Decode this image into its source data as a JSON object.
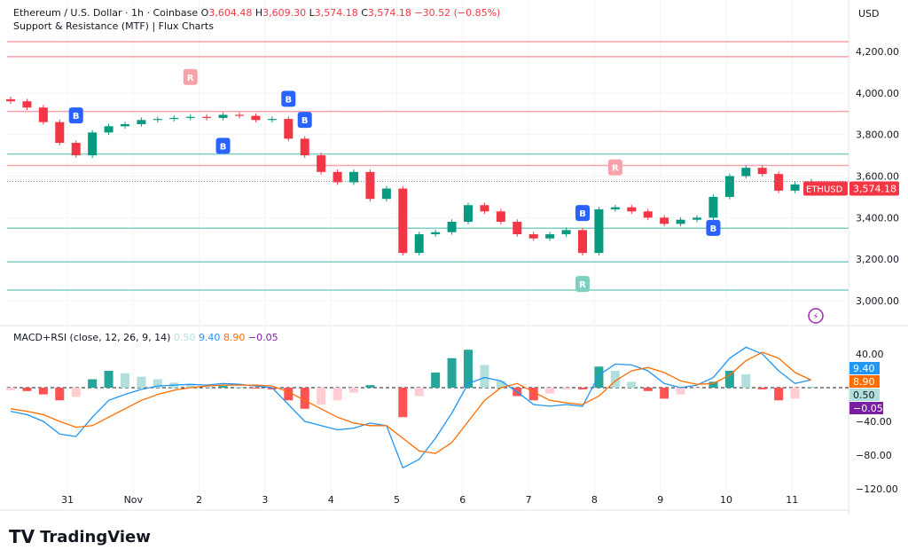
{
  "header": {
    "symbol": "Ethereum / U.S. Dollar · 1h · Coinbase",
    "o_label": "O",
    "open": "3,604.48",
    "h_label": "H",
    "high": "3,609.30",
    "l_label": "L",
    "low": "3,574.18",
    "c_label": "C",
    "close": "3,574.18",
    "change": "−30.52 (−0.85%)",
    "indicator": "Support & Resistance (MTF) | Flux Charts"
  },
  "currency": "USD",
  "price_tag": {
    "symbol": "ETHUSD",
    "value": "3,574.18"
  },
  "macd_header": {
    "label": "MACD+RSI (close, 12, 26, 9, 14)",
    "hist": "0.50",
    "macd": "9.40",
    "signal": "8.90",
    "rsi": "−0.05"
  },
  "macd_tags": [
    "9.40",
    "8.90",
    "0.50",
    "−0.05"
  ],
  "logo": "TradingView",
  "colors": {
    "up": "#089981",
    "down": "#f23645",
    "resistance": "#f7a1a8",
    "support": "#7fcfc0",
    "macd": "#2196f3",
    "signal": "#ff6d00",
    "tag_hist": "#b2dfdb",
    "tag_rsi": "#7b1fa2"
  },
  "chart_data": {
    "type": "candlestick",
    "interval": "1h (sampled every 6h)",
    "x_tick_labels": [
      "31",
      "Nov",
      "2",
      "3",
      "4",
      "5",
      "6",
      "7",
      "8",
      "9",
      "10",
      "11"
    ],
    "y_tick_labels": [
      "4,200.00",
      "4,000.00",
      "3,800.00",
      "3,600.00",
      "3,400.00",
      "3,200.00",
      "3,000.00"
    ],
    "ylim": [
      2950,
      4290
    ],
    "closes": [
      3960,
      3930,
      3860,
      3760,
      3700,
      3810,
      3840,
      3850,
      3870,
      3875,
      3880,
      3885,
      3880,
      3895,
      3890,
      3870,
      3875,
      3780,
      3700,
      3620,
      3570,
      3620,
      3490,
      3540,
      3230,
      3320,
      3330,
      3380,
      3460,
      3430,
      3380,
      3320,
      3300,
      3320,
      3340,
      3230,
      3440,
      3450,
      3430,
      3400,
      3370,
      3390,
      3400,
      3500,
      3600,
      3640,
      3610,
      3530,
      3560,
      3574.18
    ],
    "resistance_levels": [
      4247,
      4175,
      3911,
      3651
    ],
    "support_levels": [
      3706,
      3349,
      3187,
      3051
    ],
    "markers": [
      {
        "i": 4,
        "text": "B",
        "type": "buy",
        "pos": "above"
      },
      {
        "i": 13,
        "text": "B",
        "type": "buy",
        "pos": "below"
      },
      {
        "i": 11,
        "text": "R",
        "type": "res",
        "pos": "above"
      },
      {
        "i": 17,
        "text": "B",
        "type": "buy",
        "pos": "above"
      },
      {
        "i": 18,
        "text": "B",
        "type": "buy",
        "pos": "above2"
      },
      {
        "i": 35,
        "text": "B",
        "type": "buy",
        "pos": "above"
      },
      {
        "i": 35,
        "text": "R",
        "type": "sup",
        "pos": "below"
      },
      {
        "i": 37,
        "text": "R",
        "type": "res",
        "pos": "above"
      },
      {
        "i": 43,
        "text": "B",
        "type": "buy",
        "pos": "below"
      }
    ],
    "macd_ylim": [
      -125,
      60
    ],
    "macd_y_tick_labels": [
      "40.00",
      "−40.00",
      "−80.00",
      "−120.00"
    ],
    "macd": [
      -28,
      -32,
      -40,
      -55,
      -58,
      -35,
      -15,
      -8,
      -2,
      2,
      3,
      4,
      3,
      5,
      4,
      2,
      0,
      -20,
      -40,
      -45,
      -50,
      -48,
      -42,
      -45,
      -95,
      -85,
      -60,
      -30,
      5,
      12,
      8,
      -5,
      -20,
      -22,
      -20,
      -22,
      15,
      28,
      27,
      20,
      5,
      0,
      3,
      12,
      35,
      48,
      40,
      20,
      5,
      9.4
    ],
    "signal": [
      -25,
      -28,
      -32,
      -40,
      -47,
      -45,
      -35,
      -25,
      -15,
      -8,
      -3,
      0,
      2,
      3,
      3,
      3,
      2,
      -5,
      -15,
      -25,
      -35,
      -42,
      -45,
      -45,
      -60,
      -75,
      -78,
      -65,
      -40,
      -15,
      0,
      5,
      -5,
      -15,
      -18,
      -20,
      -10,
      8,
      20,
      24,
      18,
      8,
      4,
      5,
      15,
      32,
      42,
      35,
      18,
      8.9
    ],
    "histogram": [
      -3,
      -4,
      -8,
      -15,
      -11,
      10,
      20,
      17,
      13,
      10,
      6,
      4,
      1,
      2,
      1,
      -1,
      -2,
      -15,
      -25,
      -20,
      -15,
      -6,
      3,
      0,
      -35,
      -10,
      18,
      35,
      45,
      27,
      8,
      -10,
      -15,
      -7,
      -2,
      -2,
      25,
      20,
      7,
      -4,
      -13,
      -8,
      -1,
      7,
      20,
      16,
      -2,
      -15,
      -13,
      0.5
    ]
  }
}
